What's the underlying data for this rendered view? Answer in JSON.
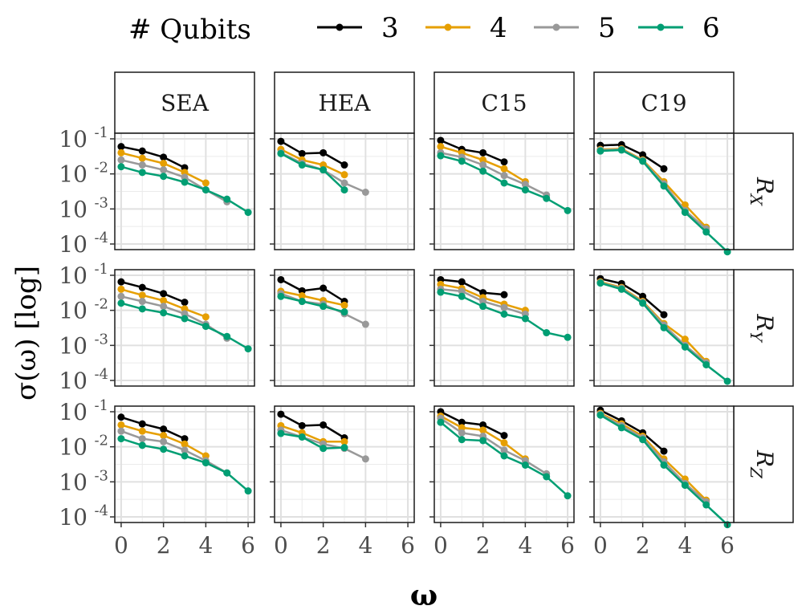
{
  "legend": {
    "title": "# Qubits",
    "position": "top",
    "entries": [
      {
        "label": "3",
        "color": "#000000"
      },
      {
        "label": "4",
        "color": "#E69F00"
      },
      {
        "label": "5",
        "color": "#999999"
      },
      {
        "label": "6",
        "color": "#009E73"
      }
    ]
  },
  "chart_data": {
    "type": "line",
    "facet_columns": [
      "SEA",
      "HEA",
      "C15",
      "C19"
    ],
    "facet_rows": [
      "R",
      "R",
      "R"
    ],
    "facet_row_subscripts": [
      "X",
      "Y",
      "Z"
    ],
    "xlabel": "ω",
    "ylabel": "σ(ω) [log]",
    "x_ticks": [
      "0",
      "2",
      "4",
      "6"
    ],
    "xlim": [
      0,
      6
    ],
    "y_ticks": [
      {
        "base": "10",
        "exp": "-1"
      },
      {
        "base": "10",
        "exp": "-2"
      },
      {
        "base": "10",
        "exp": "-3"
      },
      {
        "base": "10",
        "exp": "-4"
      }
    ],
    "ylim": [
      0.0001,
      0.1
    ],
    "y_scale": "log",
    "grid": true,
    "panels": [
      [
        {
          "series": [
            {
              "name": "3",
              "x": [
                0,
                1,
                2,
                3
              ],
              "y": [
                0.06,
                0.045,
                0.03,
                0.015
              ]
            },
            {
              "name": "4",
              "x": [
                0,
                1,
                2,
                3,
                4
              ],
              "y": [
                0.04,
                0.028,
                0.02,
                0.011,
                0.0055
              ]
            },
            {
              "name": "5",
              "x": [
                0,
                1,
                2,
                3,
                4,
                5
              ],
              "y": [
                0.025,
                0.018,
                0.013,
                0.008,
                0.0035,
                0.0016
              ]
            },
            {
              "name": "6",
              "x": [
                0,
                1,
                2,
                3,
                4,
                5,
                6
              ],
              "y": [
                0.016,
                0.011,
                0.0085,
                0.0058,
                0.0035,
                0.0019,
                0.0008
              ]
            }
          ]
        },
        {
          "series": [
            {
              "name": "3",
              "x": [
                0,
                1,
                2,
                3
              ],
              "y": [
                0.085,
                0.038,
                0.04,
                0.018
              ]
            },
            {
              "name": "4",
              "x": [
                0,
                1,
                2,
                3
              ],
              "y": [
                0.05,
                0.025,
                0.018,
                0.0095
              ]
            },
            {
              "name": "5",
              "x": [
                0,
                1,
                2,
                3,
                4
              ],
              "y": [
                0.04,
                0.02,
                0.013,
                0.0055,
                0.003
              ]
            },
            {
              "name": "6",
              "x": [
                0,
                1,
                2,
                3
              ],
              "y": [
                0.038,
                0.018,
                0.013,
                0.0035
              ]
            }
          ]
        },
        {
          "series": [
            {
              "name": "3",
              "x": [
                0,
                1,
                2,
                3
              ],
              "y": [
                0.09,
                0.05,
                0.04,
                0.022
              ]
            },
            {
              "name": "4",
              "x": [
                0,
                1,
                2,
                3,
                4
              ],
              "y": [
                0.06,
                0.04,
                0.025,
                0.014,
                0.006
              ]
            },
            {
              "name": "5",
              "x": [
                0,
                1,
                2,
                3,
                4,
                5
              ],
              "y": [
                0.04,
                0.03,
                0.018,
                0.009,
                0.005,
                0.0025
              ]
            },
            {
              "name": "6",
              "x": [
                0,
                1,
                2,
                3,
                4,
                5,
                6
              ],
              "y": [
                0.033,
                0.023,
                0.012,
                0.0055,
                0.0035,
                0.002,
                0.0009
              ]
            }
          ]
        },
        {
          "series": [
            {
              "name": "3",
              "x": [
                0,
                1,
                2,
                3
              ],
              "y": [
                0.065,
                0.068,
                0.035,
                0.014
              ]
            },
            {
              "name": "4",
              "x": [
                0,
                1,
                2,
                3,
                4,
                5
              ],
              "y": [
                0.05,
                0.052,
                0.025,
                0.006,
                0.0013,
                0.0003
              ]
            },
            {
              "name": "5",
              "x": [
                0,
                1,
                2,
                3,
                4,
                5
              ],
              "y": [
                0.048,
                0.05,
                0.024,
                0.0052,
                0.0009,
                0.00027
              ]
            },
            {
              "name": "6",
              "x": [
                0,
                1,
                2,
                3,
                4,
                5,
                6
              ],
              "y": [
                0.045,
                0.048,
                0.023,
                0.0045,
                0.0008,
                0.00022,
                6e-05
              ]
            }
          ]
        }
      ],
      [
        {
          "series": [
            {
              "name": "3",
              "x": [
                0,
                1,
                2,
                3
              ],
              "y": [
                0.065,
                0.045,
                0.03,
                0.017
              ]
            },
            {
              "name": "4",
              "x": [
                0,
                1,
                2,
                3,
                4
              ],
              "y": [
                0.04,
                0.027,
                0.019,
                0.011,
                0.0065
              ]
            },
            {
              "name": "5",
              "x": [
                0,
                1,
                2,
                3,
                4,
                5
              ],
              "y": [
                0.025,
                0.018,
                0.013,
                0.008,
                0.004,
                0.0016
              ]
            },
            {
              "name": "6",
              "x": [
                0,
                1,
                2,
                3,
                4,
                5,
                6
              ],
              "y": [
                0.016,
                0.011,
                0.0085,
                0.0058,
                0.0035,
                0.0018,
                0.0008
              ]
            }
          ]
        },
        {
          "series": [
            {
              "name": "3",
              "x": [
                0,
                1,
                2,
                3
              ],
              "y": [
                0.075,
                0.036,
                0.043,
                0.018
              ]
            },
            {
              "name": "4",
              "x": [
                0,
                1,
                2,
                3
              ],
              "y": [
                0.035,
                0.026,
                0.019,
                0.014
              ]
            },
            {
              "name": "5",
              "x": [
                0,
                1,
                2,
                3,
                4
              ],
              "y": [
                0.03,
                0.018,
                0.015,
                0.008,
                0.004
              ]
            },
            {
              "name": "6",
              "x": [
                0,
                1,
                2,
                3
              ],
              "y": [
                0.025,
                0.018,
                0.013,
                0.009
              ]
            }
          ]
        },
        {
          "series": [
            {
              "name": "3",
              "x": [
                0,
                1,
                2,
                3
              ],
              "y": [
                0.075,
                0.065,
                0.032,
                0.028
              ]
            },
            {
              "name": "4",
              "x": [
                0,
                1,
                2,
                3,
                4
              ],
              "y": [
                0.055,
                0.042,
                0.023,
                0.015,
                0.01
              ]
            },
            {
              "name": "5",
              "x": [
                0,
                1,
                2,
                3,
                4
              ],
              "y": [
                0.04,
                0.035,
                0.018,
                0.012,
                0.0078
              ]
            },
            {
              "name": "6",
              "x": [
                0,
                1,
                2,
                3,
                4,
                5,
                6
              ],
              "y": [
                0.033,
                0.025,
                0.013,
                0.0078,
                0.0058,
                0.0023,
                0.0017
              ]
            }
          ]
        },
        {
          "series": [
            {
              "name": "3",
              "x": [
                0,
                1,
                2,
                3
              ],
              "y": [
                0.08,
                0.058,
                0.025,
                0.0075
              ]
            },
            {
              "name": "4",
              "x": [
                0,
                1,
                2,
                3,
                4,
                5
              ],
              "y": [
                0.065,
                0.045,
                0.018,
                0.0042,
                0.0015,
                0.00035
              ]
            },
            {
              "name": "5",
              "x": [
                0,
                1,
                2,
                3,
                4,
                5
              ],
              "y": [
                0.062,
                0.043,
                0.017,
                0.0038,
                0.001,
                0.00032
              ]
            },
            {
              "name": "6",
              "x": [
                0,
                1,
                2,
                3,
                4,
                5,
                6
              ],
              "y": [
                0.06,
                0.04,
                0.016,
                0.0032,
                0.0009,
                0.00028,
                9.5e-05
              ]
            }
          ]
        }
      ],
      [
        {
          "series": [
            {
              "name": "3",
              "x": [
                0,
                1,
                2,
                3
              ],
              "y": [
                0.07,
                0.045,
                0.032,
                0.017
              ]
            },
            {
              "name": "4",
              "x": [
                0,
                1,
                2,
                3,
                4
              ],
              "y": [
                0.042,
                0.028,
                0.021,
                0.012,
                0.0055
              ]
            },
            {
              "name": "5",
              "x": [
                0,
                1,
                2,
                3,
                4,
                5
              ],
              "y": [
                0.028,
                0.017,
                0.014,
                0.008,
                0.004,
                0.0018
              ]
            },
            {
              "name": "6",
              "x": [
                0,
                1,
                2,
                3,
                4,
                5,
                6
              ],
              "y": [
                0.017,
                0.011,
                0.0085,
                0.0055,
                0.0035,
                0.0018,
                0.00055
              ]
            }
          ]
        },
        {
          "series": [
            {
              "name": "3",
              "x": [
                0,
                1,
                2,
                3
              ],
              "y": [
                0.085,
                0.04,
                0.042,
                0.018
              ]
            },
            {
              "name": "4",
              "x": [
                0,
                1,
                2,
                3
              ],
              "y": [
                0.04,
                0.025,
                0.014,
                0.014
              ]
            },
            {
              "name": "5",
              "x": [
                0,
                1,
                2,
                3,
                4
              ],
              "y": [
                0.03,
                0.019,
                0.012,
                0.009,
                0.0045
              ]
            },
            {
              "name": "6",
              "x": [
                0,
                1,
                2,
                3
              ],
              "y": [
                0.024,
                0.019,
                0.009,
                0.0095
              ]
            }
          ]
        },
        {
          "series": [
            {
              "name": "3",
              "x": [
                0,
                1,
                2,
                3
              ],
              "y": [
                0.1,
                0.05,
                0.042,
                0.021
              ]
            },
            {
              "name": "4",
              "x": [
                0,
                1,
                2,
                3,
                4
              ],
              "y": [
                0.075,
                0.035,
                0.03,
                0.013,
                0.0045
              ]
            },
            {
              "name": "5",
              "x": [
                0,
                1,
                2,
                3,
                4,
                5
              ],
              "y": [
                0.065,
                0.025,
                0.02,
                0.008,
                0.004,
                0.0017
              ]
            },
            {
              "name": "6",
              "x": [
                0,
                1,
                2,
                3,
                4,
                5,
                6
              ],
              "y": [
                0.05,
                0.016,
                0.015,
                0.0055,
                0.003,
                0.0014,
                0.0004
              ]
            }
          ]
        },
        {
          "series": [
            {
              "name": "3",
              "x": [
                0,
                1,
                2,
                3
              ],
              "y": [
                0.11,
                0.055,
                0.025,
                0.0075
              ]
            },
            {
              "name": "4",
              "x": [
                0,
                1,
                2,
                3,
                4,
                5
              ],
              "y": [
                0.09,
                0.045,
                0.02,
                0.0045,
                0.0012,
                0.0003
              ]
            },
            {
              "name": "5",
              "x": [
                0,
                1,
                2,
                3,
                4,
                5
              ],
              "y": [
                0.085,
                0.04,
                0.018,
                0.0037,
                0.0009,
                0.00027
              ]
            },
            {
              "name": "6",
              "x": [
                0,
                1,
                2,
                3,
                4,
                5,
                6
              ],
              "y": [
                0.08,
                0.035,
                0.016,
                0.003,
                0.0008,
                0.00022,
                6e-05
              ]
            }
          ]
        }
      ]
    ]
  }
}
